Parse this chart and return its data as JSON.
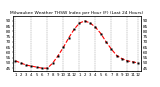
{
  "title": "Milwaukee Weather THSW Index per Hour (F) (Last 24 Hours)",
  "hours": [
    0,
    1,
    2,
    3,
    4,
    5,
    6,
    7,
    8,
    9,
    10,
    11,
    12,
    13,
    14,
    15,
    16,
    17,
    18,
    19,
    20,
    21,
    22,
    23
  ],
  "values": [
    52,
    50,
    48,
    47,
    46,
    45,
    45,
    50,
    57,
    65,
    74,
    82,
    88,
    90,
    88,
    84,
    78,
    70,
    63,
    57,
    54,
    52,
    51,
    50
  ],
  "line_color": "#ff0000",
  "marker_color": "#000000",
  "bg_color": "#ffffff",
  "plot_bg_color": "#ffffff",
  "grid_color": "#888888",
  "ylim": [
    42,
    95
  ],
  "yticks": [
    45,
    50,
    55,
    60,
    65,
    70,
    75,
    80,
    85,
    90
  ],
  "ylabel_fontsize": 3.0,
  "xlabel_fontsize": 2.8,
  "title_fontsize": 3.2,
  "line_width": 0.8,
  "marker_size": 1.2,
  "grid_positions": [
    0,
    3,
    6,
    9,
    12,
    15,
    18,
    21,
    23
  ]
}
